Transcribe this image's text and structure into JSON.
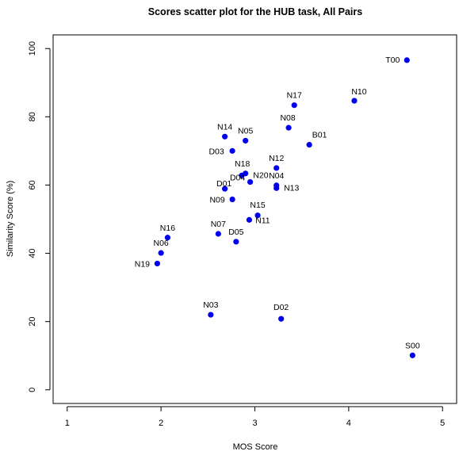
{
  "chart_data": {
    "type": "scatter",
    "title": "Scores scatter plot for the HUB task, All Pairs",
    "xlabel": "MOS Score",
    "ylabel": "Similarity Score (%)",
    "xlim": [
      0.85,
      5.15
    ],
    "ylim": [
      -4,
      104
    ],
    "xticks": [
      1,
      2,
      3,
      4,
      5
    ],
    "yticks": [
      0,
      20,
      40,
      60,
      80,
      100
    ],
    "grid": false,
    "legend": "none",
    "point_color": "#0000ee",
    "points": [
      {
        "label": "T00",
        "x": 4.62,
        "y": 96.6
      },
      {
        "label": "N10",
        "x": 4.06,
        "y": 84.7
      },
      {
        "label": "N17",
        "x": 3.42,
        "y": 83.4
      },
      {
        "label": "N08",
        "x": 3.36,
        "y": 76.8
      },
      {
        "label": "B01",
        "x": 3.58,
        "y": 71.8
      },
      {
        "label": "N14",
        "x": 2.68,
        "y": 74.2
      },
      {
        "label": "N05",
        "x": 2.9,
        "y": 73.0
      },
      {
        "label": "D03",
        "x": 2.76,
        "y": 70.0
      },
      {
        "label": "N12",
        "x": 3.23,
        "y": 65.0
      },
      {
        "label": "N18",
        "x": 2.9,
        "y": 63.4
      },
      {
        "label": "N20",
        "x": 2.86,
        "y": 62.8
      },
      {
        "label": "D01",
        "x": 2.68,
        "y": 58.9
      },
      {
        "label": "D04",
        "x": 2.95,
        "y": 60.9
      },
      {
        "label": "N04",
        "x": 3.23,
        "y": 59.9
      },
      {
        "label": "N13",
        "x": 3.23,
        "y": 59.1
      },
      {
        "label": "N09",
        "x": 2.76,
        "y": 55.8
      },
      {
        "label": "N15",
        "x": 3.03,
        "y": 51.1
      },
      {
        "label": "N11",
        "x": 2.94,
        "y": 49.8
      },
      {
        "label": "N07",
        "x": 2.61,
        "y": 45.7
      },
      {
        "label": "D05",
        "x": 2.8,
        "y": 43.4
      },
      {
        "label": "N16",
        "x": 2.07,
        "y": 44.6
      },
      {
        "label": "N06",
        "x": 2.0,
        "y": 40.1
      },
      {
        "label": "N19",
        "x": 1.96,
        "y": 37.0
      },
      {
        "label": "N03",
        "x": 2.53,
        "y": 22.0
      },
      {
        "label": "D02",
        "x": 3.28,
        "y": 20.8
      },
      {
        "label": "S00",
        "x": 4.68,
        "y": 10.1
      }
    ]
  }
}
